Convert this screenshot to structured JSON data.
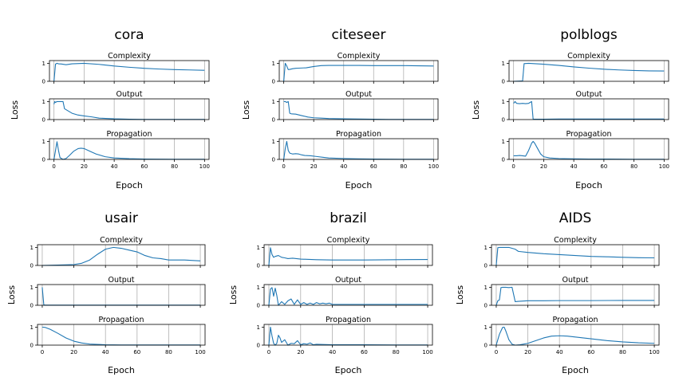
{
  "chart_data": [
    {
      "type": "line",
      "title": "cora",
      "xlabel": "Epoch",
      "ylabel": "Loss",
      "xlim": [
        -3,
        103
      ],
      "ylim": [
        0,
        1.15
      ],
      "x_ticks": [
        0,
        20,
        40,
        60,
        80,
        100
      ],
      "y_ticks": [
        0,
        1
      ],
      "grid": "x",
      "panels": [
        {
          "title": "Complexity",
          "x": [
            0,
            1,
            2,
            3,
            5,
            8,
            12,
            20,
            30,
            40,
            50,
            60,
            70,
            80,
            90,
            100
          ],
          "y": [
            0.0,
            0.95,
            1.0,
            0.97,
            0.96,
            0.92,
            0.97,
            1.0,
            0.94,
            0.85,
            0.78,
            0.72,
            0.68,
            0.65,
            0.63,
            0.61
          ]
        },
        {
          "title": "Output",
          "x": [
            0,
            0.5,
            1,
            2,
            4,
            6,
            7,
            9,
            12,
            16,
            20,
            25,
            30,
            40,
            50,
            60,
            80,
            100
          ],
          "y": [
            0.85,
            1.0,
            0.95,
            1.0,
            1.0,
            1.0,
            0.6,
            0.5,
            0.35,
            0.25,
            0.2,
            0.15,
            0.08,
            0.04,
            0.02,
            0.01,
            0.01,
            0.01
          ]
        },
        {
          "title": "Propagation",
          "x": [
            0,
            2,
            3,
            4,
            6,
            8,
            10,
            13,
            16,
            18,
            20,
            24,
            28,
            34,
            40,
            50,
            60,
            80,
            100
          ],
          "y": [
            0.0,
            0.98,
            0.5,
            0.1,
            0.0,
            0.05,
            0.2,
            0.45,
            0.6,
            0.62,
            0.6,
            0.45,
            0.3,
            0.15,
            0.08,
            0.04,
            0.02,
            0.01,
            0.01
          ]
        }
      ]
    },
    {
      "type": "line",
      "title": "citeseer",
      "xlabel": "Epoch",
      "ylabel": "Loss",
      "xlim": [
        -3,
        103
      ],
      "ylim": [
        0,
        1.15
      ],
      "x_ticks": [
        0,
        20,
        40,
        60,
        80,
        100
      ],
      "y_ticks": [
        0,
        1
      ],
      "grid": "x",
      "panels": [
        {
          "title": "Complexity",
          "x": [
            0,
            1,
            2,
            3,
            4,
            6,
            8,
            10,
            15,
            20,
            25,
            30,
            40,
            50,
            60,
            70,
            80,
            90,
            100
          ],
          "y": [
            0.0,
            1.0,
            0.85,
            0.65,
            0.66,
            0.7,
            0.72,
            0.73,
            0.75,
            0.82,
            0.87,
            0.88,
            0.88,
            0.88,
            0.87,
            0.87,
            0.87,
            0.86,
            0.85
          ]
        },
        {
          "title": "Output",
          "x": [
            0,
            1,
            2,
            3,
            4,
            5,
            8,
            12,
            16,
            20,
            25,
            30,
            40,
            50,
            60,
            70,
            80,
            100
          ],
          "y": [
            1.0,
            1.0,
            0.95,
            1.0,
            0.35,
            0.32,
            0.3,
            0.22,
            0.14,
            0.1,
            0.08,
            0.06,
            0.04,
            0.03,
            0.02,
            0.01,
            0.01,
            0.01
          ]
        },
        {
          "title": "Propagation",
          "x": [
            0,
            1,
            2,
            3,
            4,
            6,
            8,
            10,
            12,
            14,
            18,
            22,
            26,
            30,
            40,
            50,
            60,
            80,
            100
          ],
          "y": [
            0.0,
            0.6,
            1.0,
            0.5,
            0.35,
            0.3,
            0.32,
            0.3,
            0.25,
            0.22,
            0.2,
            0.16,
            0.12,
            0.08,
            0.05,
            0.03,
            0.02,
            0.01,
            0.01
          ]
        }
      ]
    },
    {
      "type": "line",
      "title": "polblogs",
      "xlabel": "Epoch",
      "ylabel": "Loss",
      "xlim": [
        -3,
        103
      ],
      "ylim": [
        0,
        1.15
      ],
      "x_ticks": [
        0,
        20,
        40,
        60,
        80,
        100
      ],
      "y_ticks": [
        0,
        1
      ],
      "grid": "x",
      "panels": [
        {
          "title": "Complexity",
          "x": [
            0,
            6,
            7,
            10,
            20,
            30,
            40,
            50,
            60,
            70,
            80,
            90,
            100
          ],
          "y": [
            0.0,
            0.02,
            0.98,
            1.0,
            0.95,
            0.88,
            0.8,
            0.73,
            0.67,
            0.63,
            0.6,
            0.58,
            0.57
          ]
        },
        {
          "title": "Output",
          "x": [
            0,
            1,
            2,
            4,
            6,
            8,
            10,
            12,
            13,
            16,
            20,
            30,
            40,
            60,
            80,
            100
          ],
          "y": [
            0.9,
            1.0,
            0.9,
            0.88,
            0.9,
            0.88,
            0.9,
            1.0,
            0.02,
            0.02,
            0.02,
            0.03,
            0.03,
            0.03,
            0.03,
            0.03
          ]
        },
        {
          "title": "Propagation",
          "x": [
            0,
            2,
            4,
            6,
            8,
            10,
            12,
            13,
            14,
            16,
            18,
            20,
            24,
            30,
            40,
            50,
            60,
            80,
            100
          ],
          "y": [
            0.2,
            0.2,
            0.22,
            0.2,
            0.18,
            0.5,
            0.9,
            1.0,
            0.9,
            0.6,
            0.3,
            0.15,
            0.08,
            0.05,
            0.03,
            0.02,
            0.02,
            0.01,
            0.01
          ]
        }
      ]
    },
    {
      "type": "line",
      "title": "usair",
      "xlabel": "Epoch",
      "ylabel": "Loss",
      "xlim": [
        -3,
        103
      ],
      "ylim": [
        0,
        1.15
      ],
      "x_ticks": [
        0,
        20,
        40,
        60,
        80,
        100
      ],
      "y_ticks": [
        0,
        1
      ],
      "grid": "x",
      "panels": [
        {
          "title": "Complexity",
          "x": [
            0,
            10,
            20,
            25,
            30,
            35,
            40,
            45,
            50,
            55,
            60,
            65,
            70,
            75,
            80,
            90,
            100
          ],
          "y": [
            0.0,
            0.02,
            0.05,
            0.12,
            0.3,
            0.62,
            0.9,
            1.0,
            0.95,
            0.85,
            0.75,
            0.55,
            0.42,
            0.38,
            0.3,
            0.3,
            0.25
          ]
        },
        {
          "title": "Output",
          "x": [
            0,
            1,
            2,
            10,
            20,
            40,
            60,
            80,
            100
          ],
          "y": [
            1.0,
            0.02,
            0.01,
            0.01,
            0.01,
            0.01,
            0.01,
            0.01,
            0.01
          ]
        },
        {
          "title": "Propagation",
          "x": [
            0,
            2,
            5,
            10,
            15,
            20,
            25,
            30,
            40,
            50,
            60,
            80,
            100
          ],
          "y": [
            1.0,
            0.98,
            0.88,
            0.65,
            0.4,
            0.22,
            0.12,
            0.06,
            0.02,
            0.01,
            0.01,
            0.01,
            0.01
          ]
        }
      ]
    },
    {
      "type": "line",
      "title": "brazil",
      "xlabel": "Epoch",
      "ylabel": "Loss",
      "xlim": [
        -3,
        103
      ],
      "ylim": [
        0,
        1.15
      ],
      "x_ticks": [
        0,
        20,
        40,
        60,
        80,
        100
      ],
      "y_ticks": [
        0,
        1
      ],
      "grid": "x",
      "panels": [
        {
          "title": "Complexity",
          "x": [
            0,
            1,
            2,
            3,
            4,
            6,
            8,
            10,
            12,
            15,
            20,
            30,
            40,
            60,
            80,
            100
          ],
          "y": [
            0.0,
            0.98,
            0.6,
            0.45,
            0.5,
            0.55,
            0.45,
            0.42,
            0.38,
            0.4,
            0.35,
            0.32,
            0.3,
            0.3,
            0.32,
            0.33
          ]
        },
        {
          "title": "Output",
          "x": [
            0,
            1,
            2,
            3,
            4,
            5,
            6,
            8,
            10,
            12,
            14,
            16,
            18,
            20,
            22,
            24,
            26,
            28,
            30,
            32,
            34,
            36,
            38,
            40,
            50,
            60,
            80,
            100
          ],
          "y": [
            0.0,
            0.9,
            0.98,
            0.5,
            0.95,
            0.55,
            0.0,
            0.2,
            0.05,
            0.25,
            0.35,
            0.05,
            0.3,
            0.05,
            0.15,
            0.05,
            0.12,
            0.05,
            0.15,
            0.08,
            0.12,
            0.08,
            0.12,
            0.05,
            0.05,
            0.05,
            0.05,
            0.05
          ]
        },
        {
          "title": "Propagation",
          "x": [
            0,
            1,
            2,
            3,
            4,
            5,
            6,
            7,
            8,
            10,
            12,
            14,
            16,
            18,
            20,
            22,
            24,
            26,
            28,
            30,
            40,
            60,
            80,
            100
          ],
          "y": [
            0.0,
            1.0,
            0.5,
            0.1,
            0.0,
            0.1,
            0.55,
            0.4,
            0.15,
            0.3,
            0.0,
            0.1,
            0.08,
            0.25,
            0.02,
            0.08,
            0.05,
            0.12,
            0.02,
            0.05,
            0.02,
            0.02,
            0.01,
            0.01
          ]
        }
      ]
    },
    {
      "type": "line",
      "title": "AIDS",
      "xlabel": "Epoch",
      "ylabel": "Loss",
      "xlim": [
        -3,
        103
      ],
      "ylim": [
        0,
        1.15
      ],
      "x_ticks": [
        0,
        20,
        40,
        60,
        80,
        100
      ],
      "y_ticks": [
        0,
        1
      ],
      "grid": "x",
      "panels": [
        {
          "title": "Complexity",
          "x": [
            0,
            1,
            2,
            3,
            5,
            8,
            10,
            12,
            14,
            20,
            30,
            40,
            50,
            60,
            70,
            80,
            90,
            100
          ],
          "y": [
            0.0,
            0.98,
            1.0,
            1.0,
            1.0,
            1.0,
            0.95,
            0.9,
            0.78,
            0.72,
            0.65,
            0.6,
            0.55,
            0.5,
            0.48,
            0.45,
            0.43,
            0.42
          ]
        },
        {
          "title": "Output",
          "x": [
            0,
            1,
            2,
            3,
            4,
            6,
            8,
            10,
            12,
            14,
            20,
            30,
            40,
            60,
            80,
            100
          ],
          "y": [
            0.0,
            0.25,
            0.3,
            0.98,
            1.0,
            1.0,
            0.98,
            1.0,
            0.2,
            0.22,
            0.25,
            0.25,
            0.26,
            0.26,
            0.27,
            0.27
          ]
        },
        {
          "title": "Propagation",
          "x": [
            0,
            2,
            4,
            5,
            6,
            8,
            10,
            12,
            15,
            20,
            25,
            30,
            35,
            40,
            45,
            50,
            60,
            70,
            80,
            90,
            100
          ],
          "y": [
            0.0,
            0.6,
            0.98,
            1.0,
            0.8,
            0.3,
            0.05,
            0.0,
            0.02,
            0.1,
            0.25,
            0.4,
            0.5,
            0.52,
            0.5,
            0.45,
            0.35,
            0.25,
            0.18,
            0.13,
            0.1
          ]
        }
      ]
    }
  ]
}
